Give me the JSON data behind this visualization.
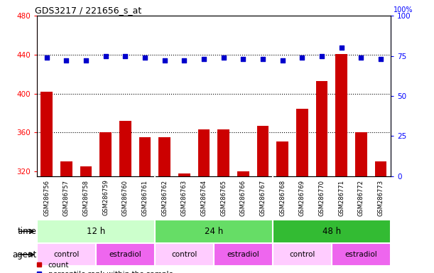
{
  "title": "GDS3217 / 221656_s_at",
  "samples": [
    "GSM286756",
    "GSM286757",
    "GSM286758",
    "GSM286759",
    "GSM286760",
    "GSM286761",
    "GSM286762",
    "GSM286763",
    "GSM286764",
    "GSM286765",
    "GSM286766",
    "GSM286767",
    "GSM286768",
    "GSM286769",
    "GSM286770",
    "GSM286771",
    "GSM286772",
    "GSM286773"
  ],
  "counts": [
    402,
    330,
    325,
    360,
    372,
    355,
    355,
    318,
    363,
    363,
    320,
    367,
    351,
    384,
    413,
    441,
    360,
    330
  ],
  "percentiles": [
    74,
    72,
    72,
    75,
    75,
    74,
    72,
    72,
    73,
    74,
    73,
    73,
    72,
    74,
    75,
    80,
    74,
    73
  ],
  "bar_color": "#cc0000",
  "dot_color": "#0000cc",
  "ylim_left": [
    315,
    480
  ],
  "ylim_right": [
    0,
    100
  ],
  "yticks_left": [
    320,
    360,
    400,
    440,
    480
  ],
  "yticks_right": [
    0,
    25,
    50,
    75,
    100
  ],
  "grid_values": [
    360,
    400,
    440
  ],
  "time_groups": [
    {
      "label": "12 h",
      "start": 0,
      "end": 6,
      "color": "#ccffcc"
    },
    {
      "label": "24 h",
      "start": 6,
      "end": 12,
      "color": "#66dd66"
    },
    {
      "label": "48 h",
      "start": 12,
      "end": 18,
      "color": "#33bb33"
    }
  ],
  "agent_groups": [
    {
      "label": "control",
      "start": 0,
      "end": 3,
      "color": "#ffccff"
    },
    {
      "label": "estradiol",
      "start": 3,
      "end": 6,
      "color": "#ee66ee"
    },
    {
      "label": "control",
      "start": 6,
      "end": 9,
      "color": "#ffccff"
    },
    {
      "label": "estradiol",
      "start": 9,
      "end": 12,
      "color": "#ee66ee"
    },
    {
      "label": "control",
      "start": 12,
      "end": 15,
      "color": "#ffccff"
    },
    {
      "label": "estradiol",
      "start": 15,
      "end": 18,
      "color": "#ee66ee"
    }
  ],
  "bg_color": "#ffffff",
  "plot_bg_color": "#ffffff",
  "xtick_bg_color": "#d8d8d8"
}
